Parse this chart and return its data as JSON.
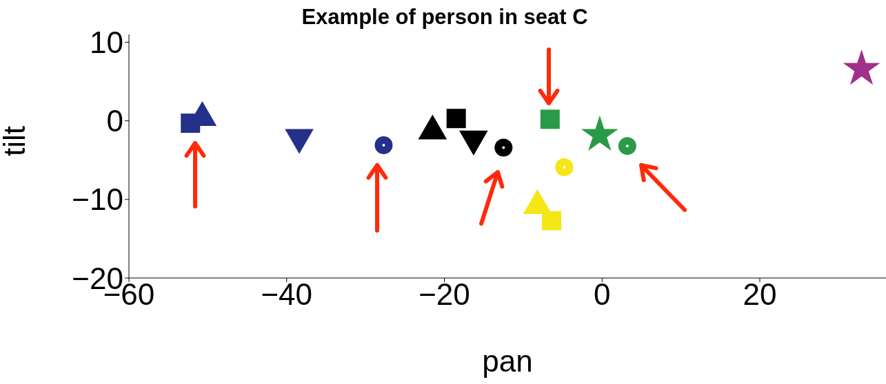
{
  "chart_data": {
    "type": "scatter",
    "title": "Example of person in seat C",
    "xlabel": "pan",
    "ylabel": "tilt",
    "xlim": [
      -60,
      36
    ],
    "ylim": [
      -20,
      11
    ],
    "xticks": [
      -60,
      -40,
      -20,
      0,
      20
    ],
    "yticks": [
      -20,
      -10,
      0,
      10
    ],
    "grid": false,
    "legend": false,
    "series": [
      {
        "color": "#25308a",
        "marker": "square",
        "x": [
          -52.2
        ],
        "values": [
          -0.3
        ]
      },
      {
        "color": "#25308a",
        "marker": "triangle",
        "x": [
          -50.7
        ],
        "values": [
          0.4
        ]
      },
      {
        "color": "#25308a",
        "marker": "triangle-down",
        "x": [
          -38.4
        ],
        "values": [
          -2.1
        ]
      },
      {
        "color": "#25308a",
        "marker": "circle",
        "x": [
          -27.7
        ],
        "values": [
          -3.1
        ]
      },
      {
        "color": "#000000",
        "marker": "triangle",
        "x": [
          -21.5
        ],
        "values": [
          -1.3
        ]
      },
      {
        "color": "#000000",
        "marker": "square",
        "x": [
          -18.5
        ],
        "values": [
          0.3
        ]
      },
      {
        "color": "#000000",
        "marker": "triangle-down",
        "x": [
          -16.3
        ],
        "values": [
          -2.3
        ]
      },
      {
        "color": "#000000",
        "marker": "circle",
        "x": [
          -12.5
        ],
        "values": [
          -3.4
        ]
      },
      {
        "color": "#2a9a48",
        "marker": "square",
        "x": [
          -6.6
        ],
        "values": [
          0.2
        ]
      },
      {
        "color": "#2a9a48",
        "marker": "star",
        "x": [
          -0.3
        ],
        "values": [
          -1.8
        ]
      },
      {
        "color": "#2a9a48",
        "marker": "circle",
        "x": [
          3.2
        ],
        "values": [
          -3.2
        ]
      },
      {
        "color": "#f5e616",
        "marker": "circle",
        "x": [
          -4.8
        ],
        "values": [
          -5.9
        ]
      },
      {
        "color": "#f5e616",
        "marker": "triangle",
        "x": [
          -8.2
        ],
        "values": [
          -10.8
        ]
      },
      {
        "color": "#f5e616",
        "marker": "square",
        "x": [
          -6.4
        ],
        "values": [
          -12.7
        ]
      },
      {
        "color": "#a0308a",
        "marker": "star",
        "x": [
          32.9
        ],
        "values": [
          6.6
        ]
      }
    ]
  }
}
